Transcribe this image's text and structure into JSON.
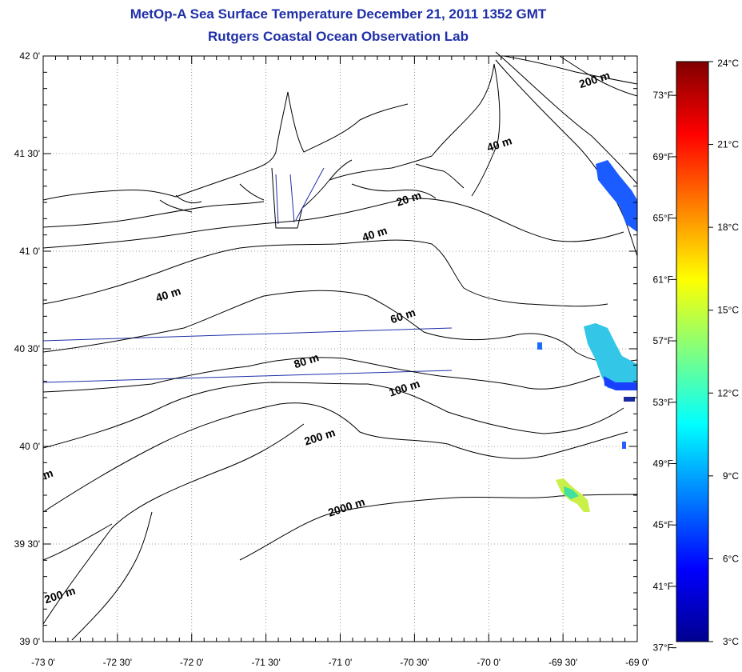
{
  "title": {
    "line1": "MetOp-A Sea Surface Temperature December 21, 2011 1352 GMT",
    "line2": "Rutgers Coastal Ocean Observation Lab"
  },
  "map": {
    "lon_range": [
      -73.0,
      -69.0
    ],
    "lat_range": [
      39.0,
      42.0
    ],
    "grid": true,
    "lon_ticks": [
      "-73 0'",
      "-72 30'",
      "-72 0'",
      "-71 30'",
      "-71 0'",
      "-70 30'",
      "-70 0'",
      "-69 30'",
      "-69 0'"
    ],
    "lat_ticks": [
      "39 0'",
      "39 30'",
      "40 0'",
      "40 30'",
      "41 0'",
      "41 30'",
      "42 0'"
    ],
    "contour_labels": [
      {
        "text": "200 m",
        "lon": -69.28,
        "lat": 41.86
      },
      {
        "text": "40 m",
        "lon": -69.92,
        "lat": 41.53
      },
      {
        "text": "20 m",
        "lon": -70.53,
        "lat": 41.25
      },
      {
        "text": "40 m",
        "lon": -70.76,
        "lat": 41.07
      },
      {
        "text": "40 m",
        "lon": -72.15,
        "lat": 40.76
      },
      {
        "text": "60 m",
        "lon": -70.57,
        "lat": 40.65
      },
      {
        "text": "80 m",
        "lon": -71.22,
        "lat": 40.42
      },
      {
        "text": "100 m",
        "lon": -70.56,
        "lat": 40.28
      },
      {
        "text": "200 m",
        "lon": -71.13,
        "lat": 40.03
      },
      {
        "text": "2000 m",
        "lon": -70.95,
        "lat": 39.67
      },
      {
        "text": "200 m",
        "lon": -72.88,
        "lat": 39.22
      },
      {
        "text": "m",
        "lon": -72.96,
        "lat": 39.84
      }
    ],
    "sst_color_scale": [
      "#00008f",
      "#0000ff",
      "#0080ff",
      "#00ffff",
      "#80ff80",
      "#ffff00",
      "#ff8000",
      "#ff0000",
      "#800000"
    ]
  },
  "colorbar": {
    "celsius_range": [
      3,
      24
    ],
    "celsius_labels": [
      "24°C",
      "21°C",
      "18°C",
      "15°C",
      "12°C",
      "9°C",
      "6°C",
      "3°C"
    ],
    "fahrenheit_labels": [
      "73°F",
      "69°F",
      "65°F",
      "61°F",
      "57°F",
      "53°F",
      "49°F",
      "45°F",
      "41°F",
      "37°F"
    ]
  }
}
